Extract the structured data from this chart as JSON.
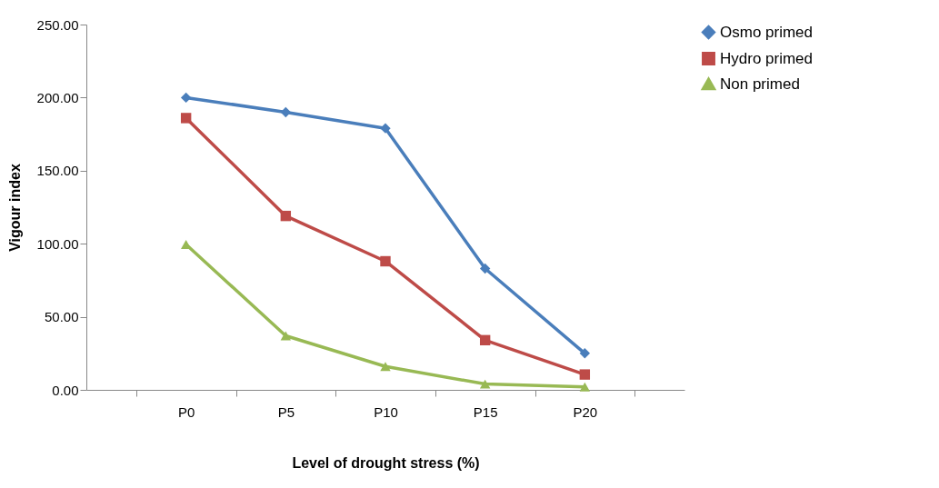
{
  "chart_data": {
    "type": "line",
    "xlabel": "Level of drought stress  (%)",
    "ylabel": "Vigour index",
    "categories": [
      "P0",
      "P5",
      "P10",
      "P15",
      "P20"
    ],
    "series": [
      {
        "name": "Osmo primed",
        "color": "#4a7ebb",
        "marker": "diamond",
        "values": [
          200,
          190,
          179,
          83,
          25
        ]
      },
      {
        "name": "Hydro primed",
        "color": "#be4b48",
        "marker": "square",
        "values": [
          186,
          119,
          88,
          34,
          10.5
        ]
      },
      {
        "name": "Non primed",
        "color": "#98b954",
        "marker": "triangle",
        "values": [
          99.5,
          37,
          16,
          4,
          2
        ]
      }
    ],
    "ylim": [
      0,
      250
    ],
    "yticks": [
      {
        "value": 0,
        "label": "0.00"
      },
      {
        "value": 50,
        "label": "50.00"
      },
      {
        "value": 100,
        "label": "100.00"
      },
      {
        "value": 150,
        "label": "150.00"
      },
      {
        "value": 200,
        "label": "200.00"
      },
      {
        "value": 250,
        "label": "250.00"
      }
    ],
    "grid": false,
    "legend": "right"
  }
}
